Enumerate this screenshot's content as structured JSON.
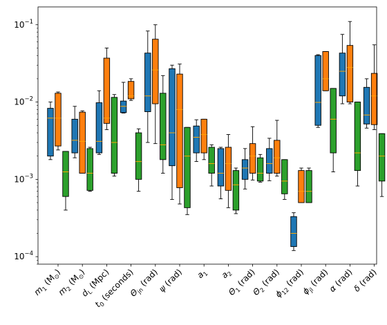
{
  "chart_data": {
    "type": "box",
    "yscale": "log",
    "ylim": [
      8e-05,
      0.17
    ],
    "yticks": [
      {
        "value": 0.0001,
        "base": "10",
        "exp": "−4"
      },
      {
        "value": 0.001,
        "base": "10",
        "exp": "−3"
      },
      {
        "value": 0.01,
        "base": "10",
        "exp": "−2"
      },
      {
        "value": 0.1,
        "base": "10",
        "exp": "−1"
      }
    ],
    "categories": [
      {
        "main": "m",
        "sub": "1",
        "unit": " (M",
        "unitSub": "⊙",
        "close": ")"
      },
      {
        "main": "m",
        "sub": "2",
        "unit": " (M",
        "unitSub": "⊙",
        "close": ")"
      },
      {
        "main": "d",
        "sub": "L",
        "unit": " (Mpc)"
      },
      {
        "main": "t",
        "sub": "0",
        "unit": " (seconds)"
      },
      {
        "main": "Θ",
        "sub": "jn",
        "unit": " (rad)"
      },
      {
        "main": "ψ",
        "sub": "",
        "unit": " (rad)"
      },
      {
        "main": "a",
        "sub": "1",
        "unit": ""
      },
      {
        "main": "a",
        "sub": "2",
        "unit": ""
      },
      {
        "main": "Θ",
        "sub": "1",
        "unit": " (rad)"
      },
      {
        "main": "Θ",
        "sub": "2",
        "unit": " (rad)"
      },
      {
        "main": "ϕ",
        "sub": "12",
        "unit": " (rad)"
      },
      {
        "main": "ϕ",
        "sub": "jl",
        "unit": " (rad)"
      },
      {
        "main": "α",
        "sub": "",
        "unit": " (rad)"
      },
      {
        "main": "δ",
        "sub": "",
        "unit": " (rad)"
      }
    ],
    "series": [
      {
        "color": "#1f77b4",
        "boxes": [
          {
            "whislo": 0.0018,
            "q1": 0.002,
            "med": 0.0062,
            "q3": 0.0083,
            "whishi": 0.01
          },
          {
            "whislo": 0.0019,
            "q1": 0.0022,
            "med": 0.0032,
            "q3": 0.006,
            "whishi": 0.0088
          },
          {
            "whislo": 0.0021,
            "q1": 0.0022,
            "med": 0.0031,
            "q3": 0.0098,
            "whishi": 0.014
          },
          {
            "whislo": 0.0072,
            "q1": 0.0073,
            "med": 0.0088,
            "q3": 0.0103,
            "whishi": 0.018
          },
          {
            "whislo": 0.003,
            "q1": 0.0075,
            "med": 0.012,
            "q3": 0.043,
            "whishi": 0.083
          },
          {
            "whislo": 0.00055,
            "q1": 0.0015,
            "med": 0.004,
            "q3": 0.027,
            "whishi": 0.03
          },
          {
            "whislo": 0.0017,
            "q1": 0.0022,
            "med": 0.0035,
            "q3": 0.0049,
            "whishi": 0.0059
          },
          {
            "whislo": 0.00056,
            "q1": 0.00082,
            "med": 0.0012,
            "q3": 0.0025,
            "whishi": 0.0026
          },
          {
            "whislo": 0.00075,
            "q1": 0.001,
            "med": 0.0014,
            "q3": 0.0018,
            "whishi": 0.0025
          },
          {
            "whislo": 0.00096,
            "q1": 0.0012,
            "med": 0.0016,
            "q3": 0.0025,
            "whishi": 0.0034
          },
          {
            "whislo": 0.00012,
            "q1": 0.000135,
            "med": 0.0002,
            "q3": 0.00033,
            "whishi": 0.00037
          },
          {
            "whislo": 0.0047,
            "q1": 0.005,
            "med": 0.0099,
            "q3": 0.04,
            "whishi": 0.041
          },
          {
            "whislo": 0.0095,
            "q1": 0.012,
            "med": 0.025,
            "q3": 0.043,
            "whishi": 0.075
          },
          {
            "whislo": 0.0046,
            "q1": 0.0052,
            "med": 0.0068,
            "q3": 0.0155,
            "whishi": 0.02
          }
        ]
      },
      {
        "color": "#ff7f0e",
        "boxes": [
          {
            "whislo": 0.0024,
            "q1": 0.0027,
            "med": 0.0062,
            "q3": 0.013,
            "whishi": 0.0135
          },
          {
            "whislo": 0.0012,
            "q1": 0.0012,
            "med": 0.0031,
            "q3": 0.0074,
            "whishi": 0.0077
          },
          {
            "whislo": 0.0044,
            "q1": 0.0053,
            "med": 0.0062,
            "q3": 0.037,
            "whishi": 0.05
          },
          {
            "whislo": 0.0105,
            "q1": 0.011,
            "med": 0.012,
            "q3": 0.0185,
            "whishi": 0.02
          },
          {
            "whislo": 0.0029,
            "q1": 0.0095,
            "med": 0.026,
            "q3": 0.065,
            "whishi": 0.1
          },
          {
            "whislo": 0.00048,
            "q1": 0.00078,
            "med": 0.008,
            "q3": 0.023,
            "whishi": 0.031
          },
          {
            "whislo": 0.0018,
            "q1": 0.0022,
            "med": 0.0038,
            "q3": 0.006,
            "whishi": 0.006
          },
          {
            "whislo": 0.00043,
            "q1": 0.00072,
            "med": 0.0016,
            "q3": 0.0026,
            "whishi": 0.0038
          },
          {
            "whislo": 0.00098,
            "q1": 0.0012,
            "med": 0.002,
            "q3": 0.0029,
            "whishi": 0.0048
          },
          {
            "whislo": 0.0011,
            "q1": 0.0012,
            "med": 0.0019,
            "q3": 0.0032,
            "whishi": 0.0058
          },
          {
            "whislo": 0.0005,
            "q1": 0.0005,
            "med": 0.0007,
            "q3": 0.0013,
            "whishi": 0.0014
          },
          {
            "whislo": 0.014,
            "q1": 0.014,
            "med": 0.02,
            "q3": 0.045,
            "whishi": 0.045
          },
          {
            "whislo": 0.0095,
            "q1": 0.01,
            "med": 0.028,
            "q3": 0.054,
            "whishi": 0.11
          },
          {
            "whislo": 0.0044,
            "q1": 0.0051,
            "med": 0.012,
            "q3": 0.0235,
            "whishi": 0.055
          }
        ]
      },
      {
        "color": "#2ca02c",
        "boxes": [
          {
            "whislo": 0.0004,
            "q1": 0.0006,
            "med": 0.00125,
            "q3": 0.0023,
            "whishi": 0.0023
          },
          {
            "whislo": 0.0007,
            "q1": 0.00072,
            "med": 0.0012,
            "q3": 0.0025,
            "whishi": 0.0026
          },
          {
            "whislo": 0.0011,
            "q1": 0.0012,
            "med": 0.003,
            "q3": 0.0115,
            "whishi": 0.0125
          },
          {
            "whislo": 0.0007,
            "q1": 0.001,
            "med": 0.0017,
            "q3": 0.004,
            "whishi": 0.0045
          },
          {
            "whislo": 0.0012,
            "q1": 0.0018,
            "med": 0.0028,
            "q3": 0.013,
            "whishi": 0.022
          },
          {
            "whislo": 0.00035,
            "q1": 0.00043,
            "med": 0.002,
            "q3": 0.0047,
            "whishi": 0.0047
          },
          {
            "whislo": 0.00082,
            "q1": 0.0012,
            "med": 0.0016,
            "q3": 0.0026,
            "whishi": 0.0028
          },
          {
            "whislo": 0.00036,
            "q1": 0.0004,
            "med": 0.00085,
            "q3": 0.0013,
            "whishi": 0.0014
          },
          {
            "whislo": 0.00092,
            "q1": 0.00095,
            "med": 0.0012,
            "q3": 0.0019,
            "whishi": 0.0021
          },
          {
            "whislo": 0.00055,
            "q1": 0.00065,
            "med": 0.00095,
            "q3": 0.0018,
            "whishi": 0.0018
          },
          {
            "whislo": 0.0005,
            "q1": 0.0005,
            "med": 0.0007,
            "q3": 0.0013,
            "whishi": 0.0014
          },
          {
            "whislo": 0.00125,
            "q1": 0.0022,
            "med": 0.006,
            "q3": 0.015,
            "whishi": 0.015
          },
          {
            "whislo": 0.00082,
            "q1": 0.0013,
            "med": 0.0022,
            "q3": 0.01,
            "whishi": 0.01
          },
          {
            "whislo": 0.0006,
            "q1": 0.00095,
            "med": 0.002,
            "q3": 0.0039,
            "whishi": 0.0039
          }
        ]
      }
    ],
    "median_color": "#ffa500",
    "grid": false,
    "legend": "none"
  }
}
